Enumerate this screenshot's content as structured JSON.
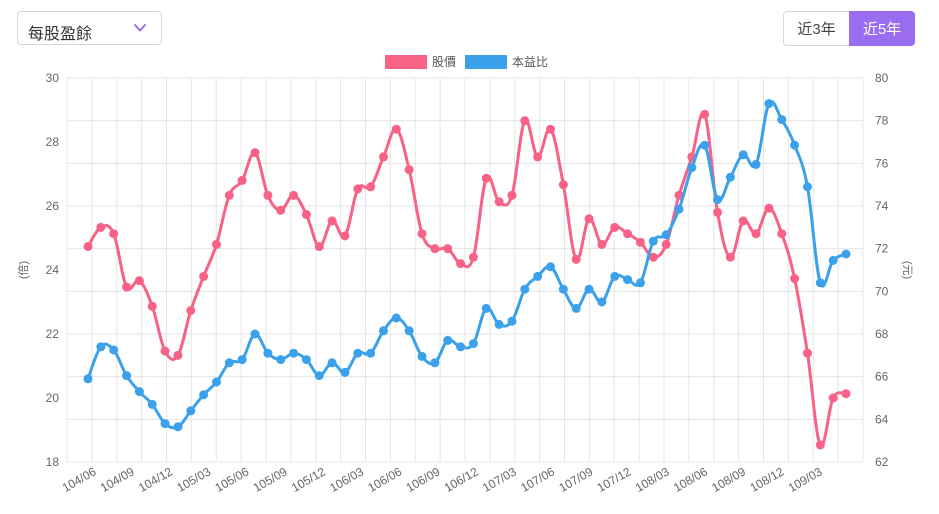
{
  "metric_select": {
    "value": "每股盈餘"
  },
  "range_buttons": {
    "three_year": "近3年",
    "five_year": "近5年",
    "active": "five_year"
  },
  "colors": {
    "price": "#f76286",
    "pe": "#3aa1ea",
    "accent": "#9a6cf0",
    "grid": "#e5e5e5"
  },
  "chart_data": {
    "type": "line",
    "title": "",
    "legend": {
      "placement": "top-center"
    },
    "grid": true,
    "x_tick_labels": [
      "104/06",
      "104/09",
      "104/12",
      "105/03",
      "105/06",
      "105/09",
      "105/12",
      "106/03",
      "106/06",
      "106/09",
      "106/12",
      "107/03",
      "107/06",
      "107/09",
      "107/12",
      "108/03",
      "108/06",
      "108/09",
      "108/12",
      "109/03"
    ],
    "y_left": {
      "label": "(倍)",
      "lim": [
        18,
        30
      ],
      "ticks": [
        "18",
        "20",
        "22",
        "24",
        "26",
        "28",
        "30"
      ]
    },
    "y_right": {
      "label": "(元)",
      "lim": [
        62,
        80
      ],
      "ticks": [
        "62",
        "64",
        "66",
        "68",
        "70",
        "72",
        "74",
        "76",
        "78",
        "80"
      ]
    },
    "series": [
      {
        "name": "股價",
        "axis": "right",
        "values": [
          72.1,
          73.0,
          72.7,
          70.2,
          70.5,
          69.3,
          67.2,
          67.0,
          69.1,
          70.7,
          72.2,
          74.5,
          75.2,
          76.5,
          74.5,
          73.8,
          74.5,
          73.6,
          72.1,
          73.3,
          72.6,
          74.8,
          74.9,
          76.3,
          77.6,
          75.7,
          72.7,
          72.0,
          72.0,
          71.3,
          71.6,
          75.3,
          74.2,
          74.5,
          78.0,
          76.3,
          77.6,
          75.0,
          71.5,
          73.4,
          72.2,
          73.0,
          72.7,
          72.3,
          71.6,
          72.2,
          74.5,
          76.3,
          78.3,
          73.7,
          71.6,
          73.3,
          72.7,
          73.9,
          72.7,
          70.6,
          67.1,
          62.8,
          65.0,
          65.2
        ]
      },
      {
        "name": "本益比",
        "axis": "left",
        "values": [
          20.6,
          21.6,
          21.5,
          20.7,
          20.2,
          19.8,
          19.2,
          19.1,
          19.6,
          20.1,
          20.5,
          21.1,
          21.2,
          22.0,
          21.4,
          21.2,
          21.4,
          21.2,
          20.7,
          21.1,
          20.8,
          21.4,
          21.4,
          22.1,
          22.5,
          22.1,
          21.3,
          21.1,
          21.8,
          21.6,
          21.7,
          22.8,
          22.3,
          22.4,
          23.4,
          23.8,
          24.1,
          23.4,
          22.8,
          23.4,
          23.0,
          23.8,
          23.7,
          23.6,
          24.9,
          25.1,
          25.9,
          27.2,
          27.9,
          26.2,
          26.9,
          27.6,
          27.3,
          29.2,
          28.7,
          27.9,
          26.6,
          23.6,
          24.3,
          24.5
        ]
      }
    ]
  }
}
